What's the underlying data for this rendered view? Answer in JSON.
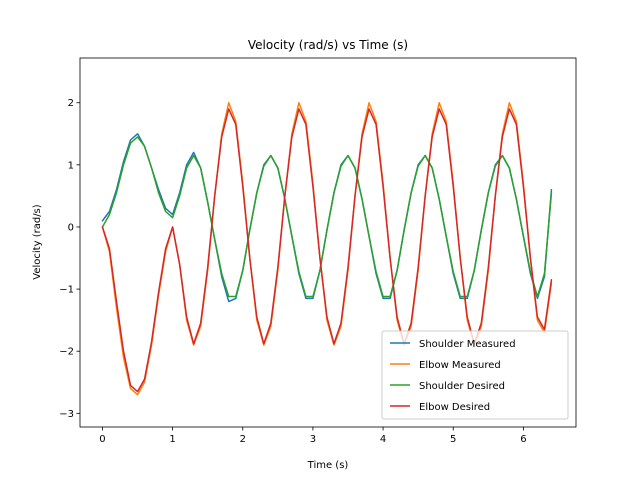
{
  "chart_data": {
    "type": "line",
    "title": "Velocity (rad/s) vs Time (s)",
    "xlabel": "Time (s)",
    "ylabel": "Velocity (rad/s)",
    "xlim": [
      -0.32,
      6.75
    ],
    "ylim": [
      -3.22,
      2.72
    ],
    "xticks": [
      0,
      1,
      2,
      3,
      4,
      5,
      6
    ],
    "yticks": [
      -3,
      -2,
      -1,
      0,
      1,
      2
    ],
    "grid": false,
    "legend_position": "lower-right",
    "series": [
      {
        "name": "Shoulder Measured",
        "color": "#1f77b4",
        "x": [
          0,
          0.1,
          0.2,
          0.3,
          0.4,
          0.5,
          0.6,
          0.7,
          0.8,
          0.9,
          1.0,
          1.1,
          1.2,
          1.3,
          1.4,
          1.5,
          1.6,
          1.7,
          1.8,
          1.9,
          2.0,
          2.1,
          2.2,
          2.3,
          2.4,
          2.5,
          2.6,
          2.7,
          2.8,
          2.9,
          3.0,
          3.1,
          3.2,
          3.3,
          3.4,
          3.5,
          3.6,
          3.7,
          3.8,
          3.9,
          4.0,
          4.1,
          4.2,
          4.3,
          4.4,
          4.5,
          4.6,
          4.7,
          4.8,
          4.9,
          5.0,
          5.1,
          5.2,
          5.3,
          5.4,
          5.5,
          5.6,
          5.7,
          5.8,
          5.9,
          6.0,
          6.1,
          6.2,
          6.3,
          6.4
        ],
        "y": [
          0.1,
          0.25,
          0.6,
          1.05,
          1.4,
          1.5,
          1.3,
          0.95,
          0.6,
          0.3,
          0.2,
          0.55,
          1.0,
          1.2,
          0.95,
          0.4,
          -0.2,
          -0.8,
          -1.2,
          -1.15,
          -0.7,
          -0.05,
          0.55,
          1.0,
          1.15,
          0.95,
          0.45,
          -0.15,
          -0.75,
          -1.15,
          -1.15,
          -0.7,
          -0.05,
          0.55,
          1.0,
          1.15,
          0.95,
          0.45,
          -0.15,
          -0.75,
          -1.15,
          -1.15,
          -0.7,
          -0.05,
          0.55,
          1.0,
          1.15,
          0.95,
          0.45,
          -0.15,
          -0.75,
          -1.15,
          -1.15,
          -0.7,
          -0.05,
          0.55,
          1.0,
          1.15,
          0.95,
          0.45,
          -0.15,
          -0.75,
          -1.15,
          -0.8,
          0.6
        ]
      },
      {
        "name": "Elbow Measured",
        "color": "#ff7f0e",
        "x": [
          0,
          0.1,
          0.2,
          0.3,
          0.4,
          0.5,
          0.6,
          0.7,
          0.8,
          0.9,
          1.0,
          1.1,
          1.2,
          1.3,
          1.4,
          1.5,
          1.6,
          1.7,
          1.8,
          1.9,
          2.0,
          2.1,
          2.2,
          2.3,
          2.4,
          2.5,
          2.6,
          2.7,
          2.8,
          2.9,
          3.0,
          3.1,
          3.2,
          3.3,
          3.4,
          3.5,
          3.6,
          3.7,
          3.8,
          3.9,
          4.0,
          4.1,
          4.2,
          4.3,
          4.4,
          4.5,
          4.6,
          4.7,
          4.8,
          4.9,
          5.0,
          5.1,
          5.2,
          5.3,
          5.4,
          5.5,
          5.6,
          5.7,
          5.8,
          5.9,
          6.0,
          6.1,
          6.2,
          6.3,
          6.4
        ],
        "y": [
          0.0,
          -0.4,
          -1.3,
          -2.1,
          -2.6,
          -2.7,
          -2.5,
          -1.9,
          -1.1,
          -0.4,
          0.0,
          -0.6,
          -1.5,
          -1.9,
          -1.6,
          -0.7,
          0.5,
          1.5,
          2.0,
          1.7,
          0.7,
          -0.5,
          -1.5,
          -1.9,
          -1.6,
          -0.7,
          0.5,
          1.5,
          2.0,
          1.7,
          0.7,
          -0.5,
          -1.5,
          -1.9,
          -1.6,
          -0.7,
          0.5,
          1.5,
          2.0,
          1.7,
          0.7,
          -0.5,
          -1.5,
          -1.9,
          -1.6,
          -0.7,
          0.5,
          1.5,
          2.0,
          1.7,
          0.7,
          -0.5,
          -1.5,
          -1.9,
          -1.6,
          -0.7,
          0.5,
          1.5,
          2.0,
          1.7,
          0.7,
          -0.5,
          -1.5,
          -1.7,
          -0.9
        ]
      },
      {
        "name": "Shoulder Desired",
        "color": "#2ca02c",
        "x": [
          0,
          0.1,
          0.2,
          0.3,
          0.4,
          0.5,
          0.6,
          0.7,
          0.8,
          0.9,
          1.0,
          1.1,
          1.2,
          1.3,
          1.4,
          1.5,
          1.6,
          1.7,
          1.8,
          1.9,
          2.0,
          2.1,
          2.2,
          2.3,
          2.4,
          2.5,
          2.6,
          2.7,
          2.8,
          2.9,
          3.0,
          3.1,
          3.2,
          3.3,
          3.4,
          3.5,
          3.6,
          3.7,
          3.8,
          3.9,
          4.0,
          4.1,
          4.2,
          4.3,
          4.4,
          4.5,
          4.6,
          4.7,
          4.8,
          4.9,
          5.0,
          5.1,
          5.2,
          5.3,
          5.4,
          5.5,
          5.6,
          5.7,
          5.8,
          5.9,
          6.0,
          6.1,
          6.2,
          6.3,
          6.4
        ],
        "y": [
          0.0,
          0.2,
          0.55,
          1.0,
          1.35,
          1.45,
          1.3,
          0.95,
          0.55,
          0.25,
          0.15,
          0.5,
          0.95,
          1.15,
          0.95,
          0.4,
          -0.2,
          -0.75,
          -1.12,
          -1.12,
          -0.7,
          -0.05,
          0.55,
          0.98,
          1.15,
          0.95,
          0.45,
          -0.15,
          -0.72,
          -1.12,
          -1.12,
          -0.7,
          -0.05,
          0.55,
          0.98,
          1.15,
          0.95,
          0.45,
          -0.15,
          -0.72,
          -1.12,
          -1.12,
          -0.7,
          -0.05,
          0.55,
          0.98,
          1.15,
          0.95,
          0.45,
          -0.15,
          -0.72,
          -1.12,
          -1.12,
          -0.7,
          -0.05,
          0.55,
          0.98,
          1.15,
          0.95,
          0.45,
          -0.15,
          -0.72,
          -1.12,
          -0.75,
          0.55
        ]
      },
      {
        "name": "Elbow Desired",
        "color": "#d62728",
        "x": [
          0,
          0.1,
          0.2,
          0.3,
          0.4,
          0.5,
          0.6,
          0.7,
          0.8,
          0.9,
          1.0,
          1.1,
          1.2,
          1.3,
          1.4,
          1.5,
          1.6,
          1.7,
          1.8,
          1.9,
          2.0,
          2.1,
          2.2,
          2.3,
          2.4,
          2.5,
          2.6,
          2.7,
          2.8,
          2.9,
          3.0,
          3.1,
          3.2,
          3.3,
          3.4,
          3.5,
          3.6,
          3.7,
          3.8,
          3.9,
          4.0,
          4.1,
          4.2,
          4.3,
          4.4,
          4.5,
          4.6,
          4.7,
          4.8,
          4.9,
          5.0,
          5.1,
          5.2,
          5.3,
          5.4,
          5.5,
          5.6,
          5.7,
          5.8,
          5.9,
          6.0,
          6.1,
          6.2,
          6.3,
          6.4
        ],
        "y": [
          0.0,
          -0.35,
          -1.2,
          -2.0,
          -2.55,
          -2.65,
          -2.45,
          -1.85,
          -1.05,
          -0.35,
          0.0,
          -0.6,
          -1.45,
          -1.88,
          -1.55,
          -0.65,
          0.5,
          1.45,
          1.9,
          1.65,
          0.65,
          -0.5,
          -1.45,
          -1.88,
          -1.55,
          -0.65,
          0.5,
          1.45,
          1.9,
          1.65,
          0.65,
          -0.5,
          -1.45,
          -1.88,
          -1.55,
          -0.65,
          0.5,
          1.45,
          1.9,
          1.65,
          0.65,
          -0.5,
          -1.45,
          -1.88,
          -1.55,
          -0.65,
          0.5,
          1.45,
          1.9,
          1.65,
          0.65,
          -0.5,
          -1.45,
          -1.88,
          -1.55,
          -0.65,
          0.5,
          1.45,
          1.9,
          1.65,
          0.65,
          -0.5,
          -1.45,
          -1.65,
          -0.85
        ]
      }
    ]
  }
}
